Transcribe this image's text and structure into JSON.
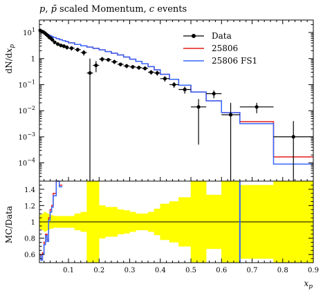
{
  "chart_data": [
    {
      "type": "line",
      "title": "p, p̄ scaled Momentum, c events",
      "ylabel": "dN/dx_p",
      "yscale": "log",
      "ylim": [
        2e-05,
        30
      ],
      "xlim": [
        0.005,
        0.9
      ],
      "ytick_labels": [
        "10^1",
        "1",
        "10^-1",
        "10^-2",
        "10^-3",
        "10^-4"
      ],
      "legend_position": "top-right",
      "bin_edges": [
        0.005,
        0.01,
        0.015,
        0.02,
        0.025,
        0.03,
        0.035,
        0.04,
        0.045,
        0.05,
        0.06,
        0.07,
        0.08,
        0.09,
        0.1,
        0.12,
        0.14,
        0.16,
        0.18,
        0.2,
        0.22,
        0.24,
        0.26,
        0.28,
        0.3,
        0.32,
        0.34,
        0.36,
        0.38,
        0.4,
        0.43,
        0.46,
        0.5,
        0.55,
        0.6,
        0.66,
        0.77,
        0.9
      ],
      "series": [
        {
          "name": "Data",
          "color": "#000000",
          "style": "points",
          "x": [
            0.0075,
            0.0125,
            0.0175,
            0.0225,
            0.0275,
            0.0325,
            0.0375,
            0.0425,
            0.0475,
            0.055,
            0.065,
            0.075,
            0.085,
            0.095,
            0.11,
            0.13,
            0.15,
            0.17,
            0.19,
            0.21,
            0.23,
            0.25,
            0.27,
            0.29,
            0.31,
            0.33,
            0.35,
            0.37,
            0.39,
            0.415,
            0.445,
            0.48,
            0.525,
            0.575,
            0.63,
            0.715,
            0.835
          ],
          "y": [
            12,
            11,
            10.5,
            9.5,
            8.5,
            7.5,
            6.5,
            6,
            5.2,
            4.2,
            3.6,
            3.2,
            3,
            2.7,
            2.5,
            2.2,
            1.7,
            0.28,
            0.55,
            0.95,
            0.9,
            0.75,
            0.6,
            0.52,
            0.48,
            0.45,
            0.42,
            0.3,
            0.28,
            0.17,
            0.1,
            0.065,
            0.014,
            0.045,
            0.007,
            0.014,
            0.001
          ],
          "ylo": [
            11,
            10,
            9.5,
            8.5,
            7.6,
            6.7,
            5.8,
            5.3,
            4.6,
            3.7,
            3.1,
            2.7,
            2.5,
            2.2,
            2.0,
            1.8,
            1.3,
            1e-05,
            0.3,
            0.75,
            0.75,
            0.62,
            0.5,
            0.43,
            0.4,
            0.37,
            0.35,
            0.24,
            0.22,
            0.13,
            0.075,
            0.045,
            0.0005,
            0.03,
            1e-05,
            0.008,
            1e-05
          ],
          "yhi": [
            13,
            12,
            11.5,
            10.5,
            9.4,
            8.3,
            7.2,
            6.7,
            5.8,
            4.7,
            4.1,
            3.7,
            3.5,
            3.2,
            3.0,
            2.6,
            2.1,
            1.0,
            0.8,
            1.15,
            1.05,
            0.9,
            0.7,
            0.62,
            0.56,
            0.53,
            0.5,
            0.36,
            0.34,
            0.21,
            0.125,
            0.085,
            0.028,
            0.06,
            0.02,
            0.02,
            0.004
          ]
        },
        {
          "name": "25806",
          "color": "#e41a1c",
          "style": "step",
          "values": [
            12.5,
            11,
            10,
            9.5,
            9,
            8.4,
            7.9,
            7.4,
            6.9,
            6.4,
            5.8,
            5.3,
            4.9,
            4.5,
            4.0,
            3.5,
            3.1,
            2.75,
            2.45,
            2.15,
            1.85,
            1.6,
            1.38,
            1.15,
            0.95,
            0.78,
            0.63,
            0.49,
            0.37,
            0.25,
            0.16,
            0.095,
            0.052,
            0.024,
            0.0085,
            0.0038,
            0.00017
          ]
        },
        {
          "name": "25806 FS1",
          "color": "#3366ff",
          "style": "step",
          "values": [
            12.5,
            11,
            10,
            9.5,
            9,
            8.4,
            7.9,
            7.4,
            6.9,
            6.4,
            5.8,
            5.3,
            4.9,
            4.5,
            4.0,
            3.5,
            3.1,
            2.75,
            2.45,
            2.15,
            1.85,
            1.6,
            1.38,
            1.15,
            0.95,
            0.78,
            0.63,
            0.49,
            0.37,
            0.25,
            0.16,
            0.095,
            0.052,
            0.024,
            0.0085,
            0.0032,
            9e-05
          ]
        }
      ]
    },
    {
      "type": "line",
      "ylabel": "MC/Data",
      "xlabel": "x_p",
      "ylim": [
        0.5,
        1.5
      ],
      "xlim": [
        0.005,
        0.9
      ],
      "yticks": [
        0.6,
        0.8,
        1,
        1.2,
        1.4
      ],
      "ytick_labels": [
        "0.6",
        "0.8",
        "1",
        "1.2",
        "1.4"
      ],
      "xticks": [
        0.1,
        0.2,
        0.3,
        0.4,
        0.5,
        0.6,
        0.7,
        0.8,
        0.9
      ],
      "xtick_labels": [
        "0.1",
        "0.2",
        "0.3",
        "0.4",
        "0.5",
        "0.6",
        "0.7",
        "0.8",
        "0.9"
      ],
      "band_color": "#ffff00",
      "band_bin_edges": [
        0.005,
        0.01,
        0.015,
        0.02,
        0.025,
        0.03,
        0.035,
        0.04,
        0.045,
        0.05,
        0.06,
        0.07,
        0.08,
        0.09,
        0.1,
        0.12,
        0.14,
        0.16,
        0.18,
        0.2,
        0.22,
        0.24,
        0.26,
        0.28,
        0.3,
        0.32,
        0.34,
        0.36,
        0.38,
        0.4,
        0.43,
        0.46,
        0.5,
        0.55,
        0.6,
        0.66,
        0.77,
        0.9
      ],
      "band_half_width": [
        0.08,
        0.09,
        0.1,
        0.12,
        0.11,
        0.1,
        0.09,
        0.08,
        0.08,
        0.07,
        0.07,
        0.07,
        0.07,
        0.07,
        0.07,
        0.1,
        0.12,
        0.6,
        0.6,
        0.2,
        0.18,
        0.18,
        0.15,
        0.14,
        0.12,
        0.1,
        0.1,
        0.12,
        0.16,
        0.22,
        0.25,
        0.3,
        0.6,
        0.33,
        0.6,
        0.45,
        0.6
      ],
      "series": [
        {
          "name": "25806",
          "color": "#e41a1c",
          "x": [
            0.0075,
            0.0125,
            0.0175,
            0.0225,
            0.0275,
            0.0325,
            0.0375,
            0.0425,
            0.0475,
            0.055,
            0.065,
            0.075
          ],
          "y": [
            0.6,
            0.55,
            0.62,
            0.75,
            0.85,
            0.78,
            1.05,
            1.15,
            1.2,
            1.35,
            1.5,
            1.45
          ]
        },
        {
          "name": "25806 FS1",
          "color": "#3366ff",
          "x": [
            0.0075,
            0.0125,
            0.0175,
            0.0225,
            0.0275,
            0.0325,
            0.0375,
            0.0425,
            0.0475,
            0.055,
            0.065,
            0.075
          ],
          "y": [
            0.58,
            0.53,
            0.6,
            0.72,
            0.83,
            0.76,
            1.02,
            1.12,
            1.18,
            1.32,
            1.5,
            1.43
          ]
        }
      ]
    }
  ]
}
